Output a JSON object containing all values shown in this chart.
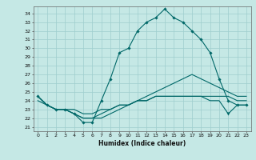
{
  "xlabel": "Humidex (Indice chaleur)",
  "xlim": [
    -0.5,
    23.5
  ],
  "ylim": [
    20.5,
    34.8
  ],
  "xticks": [
    0,
    1,
    2,
    3,
    4,
    5,
    6,
    7,
    8,
    9,
    10,
    11,
    12,
    13,
    14,
    15,
    16,
    17,
    18,
    19,
    20,
    21,
    22,
    23
  ],
  "yticks": [
    21,
    22,
    23,
    24,
    25,
    26,
    27,
    28,
    29,
    30,
    31,
    32,
    33,
    34
  ],
  "bg_color": "#c5e8e5",
  "line_color": "#006868",
  "grid_color": "#9ecece",
  "line1_x": [
    0,
    1,
    2,
    3,
    4,
    5,
    6,
    7,
    8,
    9,
    10,
    11,
    12,
    13,
    14,
    15,
    16,
    17,
    18,
    19,
    20,
    21,
    22,
    23
  ],
  "line1_y": [
    24.5,
    23.5,
    23.0,
    23.0,
    22.5,
    21.5,
    21.5,
    24.0,
    26.5,
    29.5,
    30.0,
    32.0,
    33.0,
    33.5,
    34.5,
    33.5,
    33.0,
    32.0,
    31.0,
    29.5,
    26.5,
    24.0,
    23.5,
    23.5
  ],
  "line2_x": [
    0,
    1,
    2,
    3,
    4,
    5,
    6,
    7,
    8,
    9,
    10,
    11,
    12,
    13,
    14,
    15,
    16,
    17,
    18,
    19,
    20,
    21,
    22,
    23
  ],
  "line2_y": [
    24.5,
    23.5,
    23.0,
    23.0,
    22.5,
    22.0,
    22.0,
    22.0,
    22.5,
    23.0,
    23.5,
    24.0,
    24.5,
    25.0,
    25.5,
    26.0,
    26.5,
    27.0,
    26.5,
    26.0,
    25.5,
    25.0,
    24.5,
    24.5
  ],
  "line3_x": [
    0,
    1,
    2,
    3,
    4,
    5,
    6,
    7,
    8,
    9,
    10,
    11,
    12,
    13,
    14,
    15,
    16,
    17,
    18,
    19,
    20,
    21,
    22,
    23
  ],
  "line3_y": [
    24.0,
    23.5,
    23.0,
    23.0,
    23.0,
    22.5,
    22.5,
    23.0,
    23.0,
    23.5,
    23.5,
    24.0,
    24.0,
    24.5,
    24.5,
    24.5,
    24.5,
    24.5,
    24.5,
    24.5,
    24.5,
    24.5,
    24.0,
    24.0
  ],
  "line4_x": [
    0,
    1,
    2,
    3,
    4,
    5,
    6,
    7,
    8,
    9,
    10,
    11,
    12,
    13,
    14,
    15,
    16,
    17,
    18,
    19,
    20,
    21,
    22,
    23
  ],
  "line4_y": [
    24.5,
    23.5,
    23.0,
    23.0,
    22.5,
    22.0,
    22.0,
    22.5,
    23.0,
    23.5,
    23.5,
    24.0,
    24.0,
    24.5,
    24.5,
    24.5,
    24.5,
    24.5,
    24.5,
    24.0,
    24.0,
    22.5,
    23.5,
    23.5
  ]
}
